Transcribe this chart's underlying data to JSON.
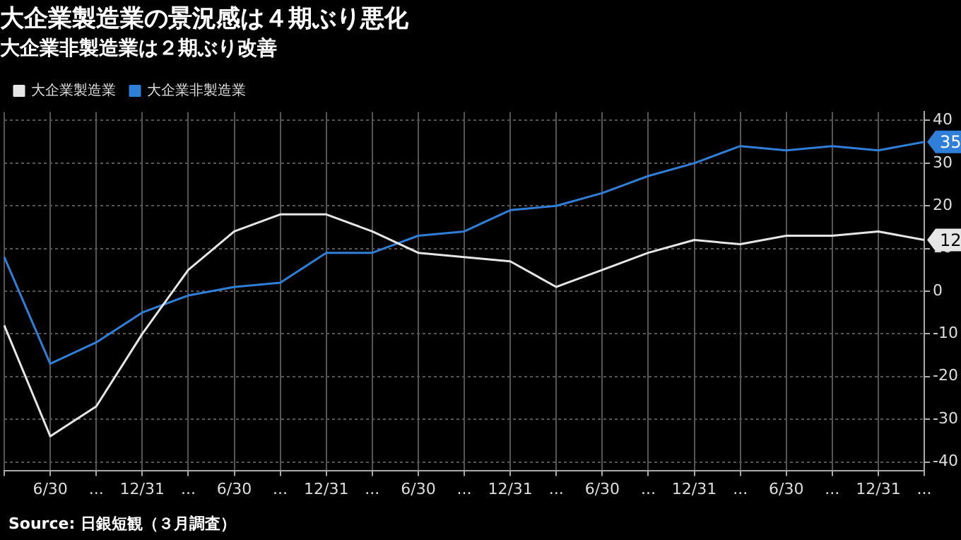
{
  "chart_data": {
    "type": "line",
    "title": "大企業製造業の景況感は４期ぶり悪化",
    "subtitle": "大企業非製造業は２期ぶり改善",
    "categories": [
      null,
      "6/30",
      "...",
      "12/31",
      "...",
      "6/30",
      "...",
      "12/31",
      "...",
      "6/30",
      "...",
      "12/31",
      "...",
      "6/30",
      "...",
      "12/31",
      "...",
      "6/30",
      "...",
      "12/31",
      "..."
    ],
    "series": [
      {
        "name": "大企業製造業",
        "color": "#e6e6e6",
        "values": [
          -8,
          -34,
          -27,
          -10,
          5,
          14,
          18,
          18,
          14,
          9,
          8,
          7,
          1,
          5,
          9,
          12,
          11,
          13,
          13,
          14,
          12
        ]
      },
      {
        "name": "大企業非製造業",
        "color": "#2f7fd8",
        "values": [
          8,
          -17,
          -12,
          -5,
          -1,
          1,
          2,
          9,
          9,
          13,
          14,
          19,
          20,
          23,
          27,
          30,
          34,
          33,
          34,
          33,
          35
        ]
      }
    ],
    "ylim": [
      -42,
      42
    ],
    "yticks": [
      -40,
      -30,
      -20,
      -10,
      0,
      10,
      20,
      30,
      40
    ],
    "grid": true,
    "legend": "top left",
    "marker": "none",
    "line_style": "solid",
    "annotations": [
      "12",
      "35",
      "Source: 日銀短観（３月調査）"
    ]
  }
}
